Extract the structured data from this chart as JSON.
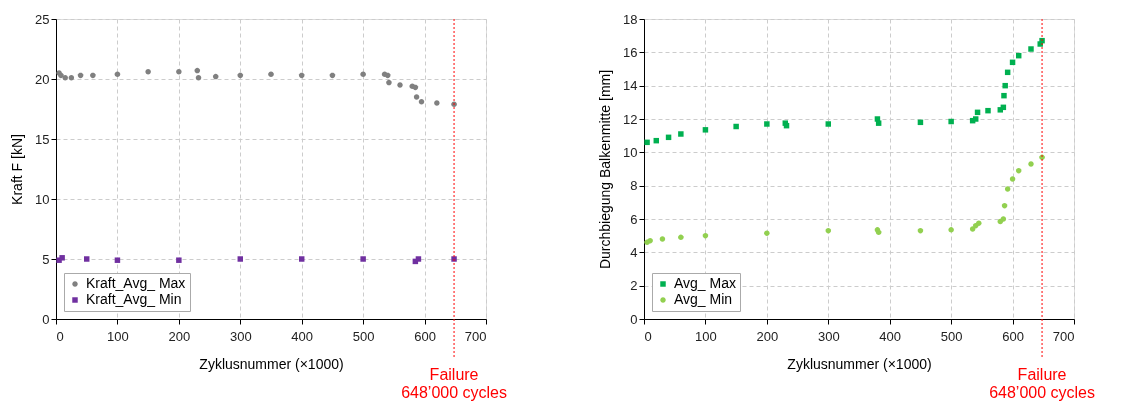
{
  "chart_data": [
    {
      "type": "scatter",
      "xlabel": "Zyklusnummer (×1000)",
      "ylabel": "Kraft F [kN]",
      "xlim": [
        0,
        700
      ],
      "xticks": [
        0,
        100,
        200,
        300,
        400,
        500,
        600,
        700
      ],
      "ylim": [
        0,
        25
      ],
      "yticks": [
        0,
        5,
        10,
        15,
        20,
        25
      ],
      "grid": true,
      "legend": "bottom left",
      "series": [
        {
          "name": "Kraft_Avg_ Max",
          "color": "#808080",
          "marker": "circle",
          "x": [
            5,
            8,
            15,
            25,
            40,
            60,
            100,
            150,
            200,
            230,
            232,
            260,
            300,
            350,
            400,
            450,
            500,
            535,
            540,
            542,
            560,
            580,
            585,
            587,
            595,
            620,
            648
          ],
          "values": [
            20.5,
            20.3,
            20.1,
            20.1,
            20.3,
            20.3,
            20.4,
            20.6,
            20.6,
            20.7,
            20.1,
            20.2,
            20.3,
            20.4,
            20.3,
            20.3,
            20.4,
            20.4,
            20.3,
            19.7,
            19.5,
            19.4,
            19.3,
            18.5,
            18.1,
            18.0,
            17.9
          ]
        },
        {
          "name": "Kraft_Avg_ Min",
          "color": "#7030a0",
          "marker": "square",
          "x": [
            5,
            10,
            50,
            100,
            200,
            300,
            400,
            500,
            585,
            590,
            648
          ],
          "values": [
            4.9,
            5.1,
            5.0,
            4.9,
            4.9,
            5.0,
            5.0,
            5.0,
            4.8,
            5.0,
            5.0
          ]
        }
      ],
      "ref_lines": [
        {
          "axis": "x",
          "value": 648,
          "label": "Failure\n648’000 cycles",
          "color": "#ff0000",
          "line_style": "dotted"
        }
      ]
    },
    {
      "type": "scatter",
      "xlabel": "Zyklusnummer (×1000)",
      "ylabel": "Durchbiegung Balkenmitte [mm]",
      "xlim": [
        0,
        700
      ],
      "xticks": [
        0,
        100,
        200,
        300,
        400,
        500,
        600,
        700
      ],
      "ylim": [
        0,
        18
      ],
      "yticks": [
        0,
        2,
        4,
        6,
        8,
        10,
        12,
        14,
        16,
        18
      ],
      "grid": true,
      "legend": "bottom left",
      "series": [
        {
          "name": "Avg_ Max",
          "color": "#00b050",
          "marker": "square",
          "x": [
            5,
            20,
            40,
            60,
            100,
            150,
            200,
            230,
            232,
            300,
            380,
            382,
            450,
            500,
            535,
            540,
            543,
            560,
            580,
            585,
            586,
            588,
            592,
            600,
            610,
            630,
            645,
            648
          ],
          "values": [
            10.6,
            10.7,
            10.9,
            11.1,
            11.35,
            11.55,
            11.7,
            11.75,
            11.6,
            11.7,
            12.0,
            11.75,
            11.8,
            11.85,
            11.9,
            12.0,
            12.4,
            12.5,
            12.55,
            12.7,
            13.4,
            14.0,
            14.8,
            15.4,
            15.8,
            16.2,
            16.5,
            16.7
          ]
        },
        {
          "name": "Avg_ Min",
          "color": "#92d050",
          "marker": "circle",
          "x": [
            5,
            10,
            30,
            60,
            100,
            200,
            300,
            380,
            382,
            450,
            500,
            535,
            540,
            545,
            580,
            585,
            587,
            592,
            600,
            610,
            630,
            648
          ],
          "values": [
            4.6,
            4.7,
            4.8,
            4.9,
            5.0,
            5.15,
            5.3,
            5.35,
            5.2,
            5.3,
            5.35,
            5.4,
            5.6,
            5.75,
            5.85,
            6.0,
            6.8,
            7.8,
            8.4,
            8.9,
            9.3,
            9.7
          ]
        }
      ],
      "ref_lines": [
        {
          "axis": "x",
          "value": 648,
          "label": "Failure\n648’000 cycles",
          "color": "#ff0000",
          "line_style": "dotted"
        }
      ]
    }
  ]
}
